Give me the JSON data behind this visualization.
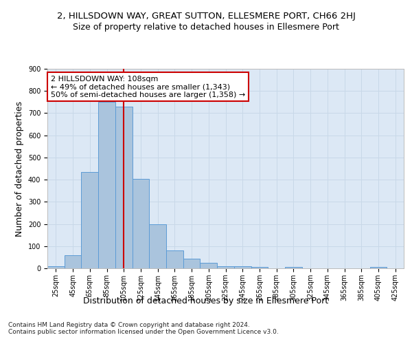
{
  "title_line1": "2, HILLSDOWN WAY, GREAT SUTTON, ELLESMERE PORT, CH66 2HJ",
  "title_line2": "Size of property relative to detached houses in Ellesmere Port",
  "xlabel": "Distribution of detached houses by size in Ellesmere Port",
  "ylabel": "Number of detached properties",
  "categories": [
    "25sqm",
    "45sqm",
    "65sqm",
    "85sqm",
    "105sqm",
    "125sqm",
    "145sqm",
    "165sqm",
    "185sqm",
    "205sqm",
    "225sqm",
    "245sqm",
    "265sqm",
    "285sqm",
    "305sqm",
    "325sqm",
    "345sqm",
    "365sqm",
    "385sqm",
    "405sqm",
    "425sqm"
  ],
  "values": [
    10,
    60,
    435,
    750,
    730,
    405,
    200,
    80,
    43,
    25,
    10,
    10,
    5,
    0,
    5,
    0,
    0,
    0,
    0,
    5,
    0
  ],
  "bar_color": "#aac4dd",
  "bar_edge_color": "#5b9bd5",
  "grid_color": "#c8d8e8",
  "background_color": "#dce8f5",
  "vline_x_index": 4,
  "vline_color": "#cc0000",
  "annotation_text_line1": "2 HILLSDOWN WAY: 108sqm",
  "annotation_text_line2": "← 49% of detached houses are smaller (1,343)",
  "annotation_text_line3": "50% of semi-detached houses are larger (1,358) →",
  "annotation_box_color": "#cc0000",
  "ylim": [
    0,
    900
  ],
  "yticks": [
    0,
    100,
    200,
    300,
    400,
    500,
    600,
    700,
    800,
    900
  ],
  "footnote": "Contains HM Land Registry data © Crown copyright and database right 2024.\nContains public sector information licensed under the Open Government Licence v3.0.",
  "title_fontsize": 9.5,
  "subtitle_fontsize": 9,
  "axis_label_fontsize": 9,
  "tick_fontsize": 7,
  "annotation_fontsize": 8,
  "footnote_fontsize": 6.5
}
